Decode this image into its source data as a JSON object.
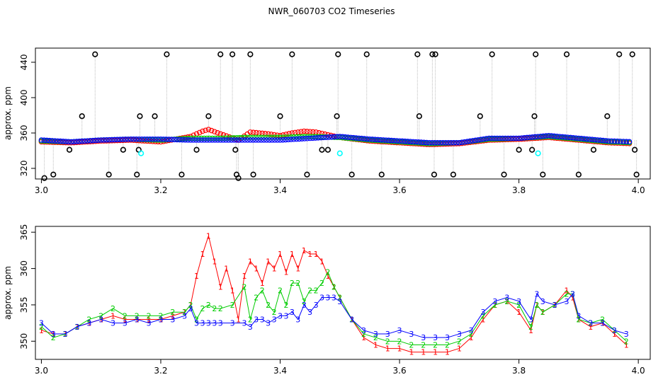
{
  "title": "NWR_060703  CO2 Timeseries",
  "colors": {
    "series1": "#ff0000",
    "series2": "#00cc00",
    "series3": "#0000ff",
    "flagged": "#000000",
    "cyan": "#00ffff",
    "gap_lines": "#bebebe"
  },
  "chart_data": [
    {
      "type": "scatter",
      "title": "",
      "xlabel": "",
      "ylabel": "approx. ppm",
      "xlim": [
        2.99,
        4.02
      ],
      "ylim": [
        308,
        456
      ],
      "xticks": [
        3.0,
        3.2,
        3.4,
        3.6,
        3.8,
        4.0
      ],
      "xtick_labels": [
        "3.0",
        "3.2",
        "3.4",
        "3.6",
        "3.8",
        "4.0"
      ],
      "yticks": [
        320,
        360,
        400,
        440
      ],
      "ytick_labels": [
        "320",
        "360",
        "400",
        "440"
      ],
      "series": [
        {
          "name": "1",
          "color": "#ff0000",
          "marker": "circle",
          "x": [
            3.0,
            3.05,
            3.1,
            3.15,
            3.2,
            3.25,
            3.27,
            3.28,
            3.3,
            3.33,
            3.35,
            3.38,
            3.4,
            3.42,
            3.44,
            3.46,
            3.48,
            3.5,
            3.55,
            3.6,
            3.65,
            3.7,
            3.75,
            3.8,
            3.85,
            3.9,
            3.95,
            3.99
          ],
          "y": [
            350,
            349,
            351,
            352,
            350,
            356,
            362,
            364,
            359,
            352,
            361,
            359,
            357,
            360,
            362,
            361,
            358,
            355,
            351,
            349,
            347,
            348,
            352,
            353,
            355,
            352,
            349,
            348
          ]
        },
        {
          "name": "2",
          "color": "#00cc00",
          "marker": "circle",
          "x": [
            3.0,
            3.05,
            3.1,
            3.15,
            3.2,
            3.25,
            3.3,
            3.35,
            3.4,
            3.45,
            3.5,
            3.55,
            3.6,
            3.65,
            3.7,
            3.75,
            3.8,
            3.85,
            3.9,
            3.95,
            3.99
          ],
          "y": [
            351,
            350,
            352,
            353,
            352,
            354,
            354,
            355,
            355,
            356,
            355,
            352,
            350,
            348,
            349,
            353,
            354,
            356,
            353,
            350,
            349
          ]
        },
        {
          "name": "3",
          "color": "#0000ff",
          "marker": "circle",
          "x": [
            3.0,
            3.05,
            3.1,
            3.15,
            3.2,
            3.25,
            3.3,
            3.35,
            3.4,
            3.45,
            3.5,
            3.55,
            3.6,
            3.65,
            3.7,
            3.75,
            3.8,
            3.85,
            3.9,
            3.95,
            3.99
          ],
          "y": [
            352,
            350,
            352,
            353,
            353,
            352,
            352,
            352,
            352,
            354,
            356,
            353,
            351,
            349,
            349,
            354,
            354,
            357,
            354,
            351,
            350
          ]
        },
        {
          "name": "flagged",
          "color": "#000000",
          "marker": "circle",
          "x": [
            3.005,
            3.02,
            3.047,
            3.068,
            3.09,
            3.113,
            3.137,
            3.16,
            3.163,
            3.165,
            3.21,
            3.19,
            3.235,
            3.26,
            3.28,
            3.3,
            3.32,
            3.325,
            3.327,
            3.33,
            3.35,
            3.355,
            3.4,
            3.42,
            3.445,
            3.47,
            3.48,
            3.495,
            3.497,
            3.52,
            3.545,
            3.57,
            3.63,
            3.633,
            3.655,
            3.658,
            3.66,
            3.69,
            3.735,
            3.755,
            3.775,
            3.8,
            3.822,
            3.826,
            3.828,
            3.84,
            3.88,
            3.9,
            3.925,
            3.948,
            3.968,
            3.99,
            3.994,
            3.997
          ],
          "y": [
            309,
            313,
            341,
            379,
            449,
            313,
            341,
            313,
            341,
            379,
            449,
            379,
            313,
            341,
            379,
            449,
            449,
            341,
            313,
            309,
            449,
            313,
            379,
            449,
            313,
            341,
            341,
            379,
            449,
            313,
            449,
            313,
            449,
            379,
            449,
            313,
            449,
            313,
            379,
            449,
            313,
            341,
            341,
            379,
            449,
            313,
            449,
            313,
            341,
            379,
            449,
            449,
            341,
            313
          ]
        },
        {
          "name": "cyan",
          "color": "#00ffff",
          "marker": "circle",
          "x": [
            3.167,
            3.5,
            3.832
          ],
          "y": [
            337,
            337,
            337
          ]
        }
      ]
    },
    {
      "type": "scatter",
      "title": "",
      "xlabel": "",
      "ylabel": "approx. ppm",
      "xlim": [
        2.99,
        4.02
      ],
      "ylim": [
        347.5,
        365.8
      ],
      "xticks": [
        3.0,
        3.2,
        3.4,
        3.6,
        3.8,
        4.0
      ],
      "xtick_labels": [
        "3.0",
        "3.2",
        "3.4",
        "3.6",
        "3.8",
        "4.0"
      ],
      "yticks": [
        350,
        355,
        360,
        365
      ],
      "ytick_labels": [
        "350",
        "355",
        "360",
        "365"
      ],
      "series": [
        {
          "name": "1",
          "color": "#ff0000",
          "marker": "digit",
          "symbol": "1",
          "x": [
            3.0,
            3.02,
            3.04,
            3.06,
            3.08,
            3.1,
            3.12,
            3.14,
            3.16,
            3.18,
            3.2,
            3.22,
            3.24,
            3.25,
            3.26,
            3.27,
            3.28,
            3.29,
            3.3,
            3.31,
            3.32,
            3.33,
            3.34,
            3.35,
            3.36,
            3.37,
            3.38,
            3.39,
            3.4,
            3.41,
            3.42,
            3.43,
            3.44,
            3.45,
            3.46,
            3.47,
            3.48,
            3.49,
            3.5,
            3.52,
            3.54,
            3.56,
            3.58,
            3.6,
            3.62,
            3.64,
            3.66,
            3.68,
            3.7,
            3.72,
            3.74,
            3.76,
            3.78,
            3.8,
            3.82,
            3.83,
            3.84,
            3.86,
            3.88,
            3.89,
            3.9,
            3.92,
            3.94,
            3.96,
            3.98
          ],
          "y": [
            351.5,
            351,
            351,
            352,
            352.5,
            353,
            353.5,
            353,
            353,
            353,
            353,
            353.5,
            354,
            355,
            359,
            362,
            364.5,
            361,
            357.5,
            360,
            357,
            353,
            359,
            361,
            360,
            358,
            361,
            360,
            362,
            359.5,
            362,
            360,
            362.5,
            362,
            362,
            361,
            359,
            357.5,
            356,
            353,
            350.5,
            349.5,
            349,
            349,
            348.5,
            348.5,
            348.5,
            348.5,
            349,
            350.5,
            353,
            355,
            355.5,
            354,
            351.5,
            355,
            354,
            355,
            357,
            356,
            353,
            352,
            352.5,
            351,
            349.5
          ]
        },
        {
          "name": "2",
          "color": "#00cc00",
          "marker": "digit",
          "symbol": "2",
          "x": [
            3.0,
            3.02,
            3.04,
            3.06,
            3.08,
            3.1,
            3.12,
            3.14,
            3.16,
            3.18,
            3.2,
            3.22,
            3.24,
            3.25,
            3.26,
            3.27,
            3.28,
            3.29,
            3.3,
            3.32,
            3.34,
            3.35,
            3.36,
            3.37,
            3.38,
            3.39,
            3.4,
            3.41,
            3.42,
            3.43,
            3.44,
            3.45,
            3.46,
            3.47,
            3.48,
            3.49,
            3.5,
            3.52,
            3.54,
            3.56,
            3.58,
            3.6,
            3.62,
            3.64,
            3.66,
            3.68,
            3.7,
            3.72,
            3.74,
            3.76,
            3.78,
            3.8,
            3.82,
            3.83,
            3.84,
            3.86,
            3.88,
            3.89,
            3.9,
            3.92,
            3.94,
            3.96,
            3.98
          ],
          "y": [
            352,
            350.5,
            351,
            352,
            353,
            353.5,
            354.5,
            353.5,
            353.5,
            353.5,
            353.5,
            354,
            354,
            355,
            353,
            354.5,
            355,
            354.5,
            354.5,
            355,
            357.5,
            353,
            356,
            357,
            355,
            354,
            357,
            355,
            358,
            358,
            355.5,
            357,
            357,
            358,
            359.5,
            357.5,
            356,
            353,
            351,
            350.5,
            350,
            350,
            349.5,
            349.5,
            349.5,
            349.5,
            350,
            351,
            353.5,
            355,
            355.5,
            355,
            352,
            355,
            354,
            355,
            356.5,
            356.5,
            353,
            352.5,
            353,
            351.5,
            350
          ]
        },
        {
          "name": "3",
          "color": "#0000ff",
          "marker": "digit",
          "symbol": "3",
          "x": [
            3.0,
            3.02,
            3.04,
            3.06,
            3.08,
            3.1,
            3.12,
            3.14,
            3.16,
            3.18,
            3.2,
            3.22,
            3.24,
            3.25,
            3.26,
            3.27,
            3.28,
            3.29,
            3.3,
            3.32,
            3.34,
            3.35,
            3.36,
            3.37,
            3.38,
            3.39,
            3.4,
            3.41,
            3.42,
            3.43,
            3.44,
            3.45,
            3.46,
            3.47,
            3.48,
            3.49,
            3.5,
            3.52,
            3.54,
            3.56,
            3.58,
            3.6,
            3.62,
            3.64,
            3.66,
            3.68,
            3.7,
            3.72,
            3.74,
            3.76,
            3.78,
            3.8,
            3.82,
            3.83,
            3.84,
            3.86,
            3.88,
            3.89,
            3.9,
            3.92,
            3.94,
            3.96,
            3.98
          ],
          "y": [
            352.5,
            351,
            351,
            352,
            352.5,
            353,
            352.5,
            352.5,
            353,
            352.5,
            353,
            353,
            353.5,
            354.5,
            352.5,
            352.5,
            352.5,
            352.5,
            352.5,
            352.5,
            352.5,
            352,
            353,
            353,
            352.5,
            353,
            353.5,
            353.5,
            354,
            353,
            355,
            354,
            355,
            356,
            356,
            356,
            355.5,
            353,
            351.5,
            351,
            351,
            351.5,
            351,
            350.5,
            350.5,
            350.5,
            351,
            351.5,
            354,
            355.5,
            356,
            355.5,
            353,
            356.5,
            355.5,
            355,
            355.5,
            356.5,
            353.5,
            352.5,
            352.5,
            351.5,
            351
          ]
        }
      ]
    }
  ]
}
